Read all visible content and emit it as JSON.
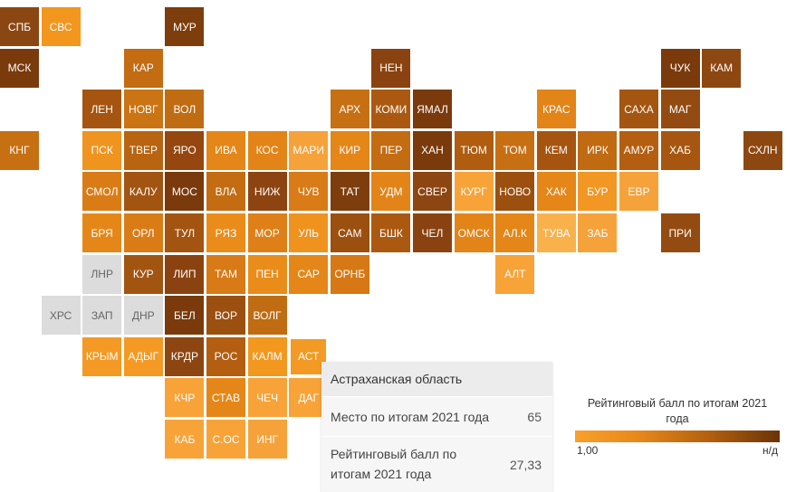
{
  "regions": [
    {
      "label": "СПБ",
      "col": 0,
      "row": 0,
      "color": "#8b4711"
    },
    {
      "label": "СВС",
      "col": 1,
      "row": 0,
      "color": "#f3961e"
    },
    {
      "label": "МУР",
      "col": 4,
      "row": 0,
      "color": "#7e3d0c"
    },
    {
      "label": "МСК",
      "col": 0,
      "row": 1,
      "color": "#7a3a0b"
    },
    {
      "label": "КАР",
      "col": 3,
      "row": 1,
      "color": "#c36c12"
    },
    {
      "label": "НЕН",
      "col": 9,
      "row": 1,
      "color": "#8a4310"
    },
    {
      "label": "ЧУК",
      "col": 16,
      "row": 1,
      "color": "#7a3a0b"
    },
    {
      "label": "КАМ",
      "col": 17,
      "row": 1,
      "color": "#8d4811"
    },
    {
      "label": "ЛЕН",
      "col": 2,
      "row": 2,
      "color": "#a55510"
    },
    {
      "label": "НОВГ",
      "col": 3,
      "row": 2,
      "color": "#cb7413"
    },
    {
      "label": "ВОЛ",
      "col": 4,
      "row": 2,
      "color": "#c06c12"
    },
    {
      "label": "АРХ",
      "col": 8,
      "row": 2,
      "color": "#c76f13"
    },
    {
      "label": "КОМИ",
      "col": 9,
      "row": 2,
      "color": "#ab5910"
    },
    {
      "label": "ЯМАЛ",
      "col": 10,
      "row": 2,
      "color": "#7a3a0b"
    },
    {
      "label": "КРАС",
      "col": 13,
      "row": 2,
      "color": "#e28418"
    },
    {
      "label": "САХА",
      "col": 15,
      "row": 2,
      "color": "#a45510"
    },
    {
      "label": "МАГ",
      "col": 16,
      "row": 2,
      "color": "#934b11"
    },
    {
      "label": "КНГ",
      "col": 0,
      "row": 3,
      "color": "#c76f13"
    },
    {
      "label": "ПСК",
      "col": 2,
      "row": 3,
      "color": "#ef941e"
    },
    {
      "label": "ТВЕР",
      "col": 3,
      "row": 3,
      "color": "#b86411"
    },
    {
      "label": "ЯРО",
      "col": 4,
      "row": 3,
      "color": "#95470f"
    },
    {
      "label": "ИВА",
      "col": 5,
      "row": 3,
      "color": "#e48618"
    },
    {
      "label": "КОС",
      "col": 6,
      "row": 3,
      "color": "#e38418"
    },
    {
      "label": "МАРИ",
      "col": 7,
      "row": 3,
      "color": "#f6a23a"
    },
    {
      "label": "КИР",
      "col": 8,
      "row": 3,
      "color": "#e58618"
    },
    {
      "label": "ПЕР",
      "col": 9,
      "row": 3,
      "color": "#c36c12"
    },
    {
      "label": "ХАН",
      "col": 10,
      "row": 3,
      "color": "#7a3a0b"
    },
    {
      "label": "ТЮМ",
      "col": 11,
      "row": 3,
      "color": "#b05d10"
    },
    {
      "label": "ТОМ",
      "col": 12,
      "row": 3,
      "color": "#c76f13"
    },
    {
      "label": "КЕМ",
      "col": 13,
      "row": 3,
      "color": "#a55510"
    },
    {
      "label": "ИРК",
      "col": 14,
      "row": 3,
      "color": "#c06a12"
    },
    {
      "label": "АМУР",
      "col": 15,
      "row": 3,
      "color": "#b35e10"
    },
    {
      "label": "ХАБ",
      "col": 16,
      "row": 3,
      "color": "#a65610"
    },
    {
      "label": "СХЛН",
      "col": 18,
      "row": 3,
      "color": "#8d4811"
    },
    {
      "label": "СМОЛ",
      "col": 2,
      "row": 4,
      "color": "#da7c16"
    },
    {
      "label": "КАЛУ",
      "col": 3,
      "row": 4,
      "color": "#a25411"
    },
    {
      "label": "МОС",
      "col": 4,
      "row": 4,
      "color": "#7a3a0b"
    },
    {
      "label": "ВЛА",
      "col": 5,
      "row": 4,
      "color": "#c36c12"
    },
    {
      "label": "НИЖ",
      "col": 6,
      "row": 4,
      "color": "#8e4410"
    },
    {
      "label": "ЧУВ",
      "col": 7,
      "row": 4,
      "color": "#d97b16"
    },
    {
      "label": "ТАТ",
      "col": 8,
      "row": 4,
      "color": "#7e3d0c"
    },
    {
      "label": "УДМ",
      "col": 9,
      "row": 4,
      "color": "#e28418"
    },
    {
      "label": "СВЕР",
      "col": 10,
      "row": 4,
      "color": "#8d4611"
    },
    {
      "label": "КУРГ",
      "col": 11,
      "row": 4,
      "color": "#f7a338"
    },
    {
      "label": "НОВО",
      "col": 12,
      "row": 4,
      "color": "#9c5010"
    },
    {
      "label": "ХАК",
      "col": 13,
      "row": 4,
      "color": "#e48618"
    },
    {
      "label": "БУР",
      "col": 14,
      "row": 4,
      "color": "#f29624"
    },
    {
      "label": "ЕВР",
      "col": 15,
      "row": 4,
      "color": "#f6a23a"
    },
    {
      "label": "БРЯ",
      "col": 2,
      "row": 5,
      "color": "#e58718"
    },
    {
      "label": "ОРЛ",
      "col": 3,
      "row": 5,
      "color": "#da7c16"
    },
    {
      "label": "ТУЛ",
      "col": 4,
      "row": 5,
      "color": "#a35411"
    },
    {
      "label": "РЯЗ",
      "col": 5,
      "row": 5,
      "color": "#ea8c1a"
    },
    {
      "label": "МОР",
      "col": 6,
      "row": 5,
      "color": "#de8017"
    },
    {
      "label": "УЛЬ",
      "col": 7,
      "row": 5,
      "color": "#f0921e"
    },
    {
      "label": "САМ",
      "col": 8,
      "row": 5,
      "color": "#9c5010"
    },
    {
      "label": "БШК",
      "col": 9,
      "row": 5,
      "color": "#ab5910"
    },
    {
      "label": "ЧЕЛ",
      "col": 10,
      "row": 5,
      "color": "#8a4310"
    },
    {
      "label": "ОМСК",
      "col": 11,
      "row": 5,
      "color": "#e28418"
    },
    {
      "label": "АЛ.К",
      "col": 12,
      "row": 5,
      "color": "#e48618"
    },
    {
      "label": "ТУВА",
      "col": 13,
      "row": 5,
      "color": "#f9b14c"
    },
    {
      "label": "ЗАБ",
      "col": 14,
      "row": 5,
      "color": "#f6a23a"
    },
    {
      "label": "ПРИ",
      "col": 16,
      "row": 5,
      "color": "#934b11"
    },
    {
      "label": "ЛНР",
      "col": 2,
      "row": 6,
      "color": "#dcdcdc",
      "nodata": true
    },
    {
      "label": "КУР",
      "col": 3,
      "row": 6,
      "color": "#a25411"
    },
    {
      "label": "ЛИП",
      "col": 4,
      "row": 6,
      "color": "#8a4310"
    },
    {
      "label": "ТАМ",
      "col": 5,
      "row": 6,
      "color": "#d87a16"
    },
    {
      "label": "ПЕН",
      "col": 6,
      "row": 6,
      "color": "#ea8c1a"
    },
    {
      "label": "САР",
      "col": 7,
      "row": 6,
      "color": "#e48618"
    },
    {
      "label": "ОРНБ",
      "col": 8,
      "row": 6,
      "color": "#d57815"
    },
    {
      "label": "АЛТ",
      "col": 12,
      "row": 6,
      "color": "#f7a338"
    },
    {
      "label": "ХРС",
      "col": 1,
      "row": 7,
      "color": "#dcdcdc",
      "nodata": true
    },
    {
      "label": "ЗАП",
      "col": 2,
      "row": 7,
      "color": "#dcdcdc",
      "nodata": true
    },
    {
      "label": "ДНР",
      "col": 3,
      "row": 7,
      "color": "#dcdcdc",
      "nodata": true
    },
    {
      "label": "БЕЛ",
      "col": 4,
      "row": 7,
      "color": "#7a3a0b"
    },
    {
      "label": "ВОР",
      "col": 5,
      "row": 7,
      "color": "#9c5010"
    },
    {
      "label": "ВОЛГ",
      "col": 6,
      "row": 7,
      "color": "#c06c12"
    },
    {
      "label": "КРЫМ",
      "col": 2,
      "row": 8,
      "color": "#f49a24"
    },
    {
      "label": "АДЫГ",
      "col": 3,
      "row": 8,
      "color": "#f49a24"
    },
    {
      "label": "КРДР",
      "col": 4,
      "row": 8,
      "color": "#8d4611"
    },
    {
      "label": "РОС",
      "col": 5,
      "row": 8,
      "color": "#b35e10"
    },
    {
      "label": "КАЛМ",
      "col": 6,
      "row": 8,
      "color": "#f2981f"
    },
    {
      "label": "АСТ",
      "col": 7,
      "row": 8,
      "color": "#f29a24",
      "selected": true
    },
    {
      "label": "КЧР",
      "col": 4,
      "row": 9,
      "color": "#f7a338"
    },
    {
      "label": "СТАВ",
      "col": 5,
      "row": 9,
      "color": "#e58718"
    },
    {
      "label": "ЧЕЧ",
      "col": 6,
      "row": 9,
      "color": "#f7a338"
    },
    {
      "label": "ДАГ",
      "col": 7,
      "row": 9,
      "color": "#f7a338"
    },
    {
      "label": "КАБ",
      "col": 4,
      "row": 10,
      "color": "#f7a338"
    },
    {
      "label": "С.ОС",
      "col": 5,
      "row": 10,
      "color": "#f7a338"
    },
    {
      "label": "ИНГ",
      "col": 6,
      "row": 10,
      "color": "#f6a23a"
    }
  ],
  "tooltip": {
    "title": "Астраханская область",
    "rank_label": "Место по итогам 2021 года",
    "rank_value": "65",
    "score_label": "Рейтинговый балл по итогам 2021 года",
    "score_value": "27,33"
  },
  "legend": {
    "title": "Рейтинговый балл по итогам 2021 года",
    "min_label": "1,00",
    "max_label": "н/д",
    "color_low": "#f9a02c",
    "color_high": "#6a3407"
  }
}
